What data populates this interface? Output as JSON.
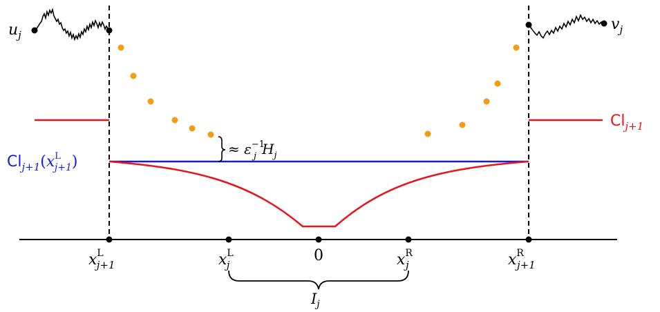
{
  "labels": {
    "u_base": "u",
    "u_sub": "j",
    "v_base": "v",
    "v_sub": "j",
    "cl_right_base": "Cl",
    "cl_right_sub": "j+1",
    "cl_left_base": "Cl",
    "cl_left_sub": "j+1",
    "cl_left_arg_open": "(",
    "cl_left_arg_x": "x",
    "cl_left_arg_sup": "L",
    "cl_left_arg_sub": "j+1",
    "cl_left_arg_close": ")",
    "brace_approx": "≈ ε",
    "brace_exp": "−1",
    "brace_j": "j",
    "brace_H": "H",
    "brace_H_sub": "j",
    "interval_base": "I",
    "interval_sub": "j"
  },
  "axis_ticks": [
    {
      "id": "xL-jp1",
      "base": "x",
      "sup": "L",
      "sub": "j+1"
    },
    {
      "id": "xL-j",
      "base": "x",
      "sup": "L",
      "sub": "j"
    },
    {
      "id": "zero",
      "base": "0",
      "sup": "",
      "sub": ""
    },
    {
      "id": "xR-j",
      "base": "x",
      "sup": "R",
      "sub": "j"
    },
    {
      "id": "xR-jp1",
      "base": "x",
      "sup": "R",
      "sub": "j+1"
    }
  ],
  "colors": {
    "axis": "#000000",
    "red_curve": "#e8141c",
    "blue_line": "#1a1adf",
    "dots": "#f39c12",
    "brownian": "#000000"
  }
}
